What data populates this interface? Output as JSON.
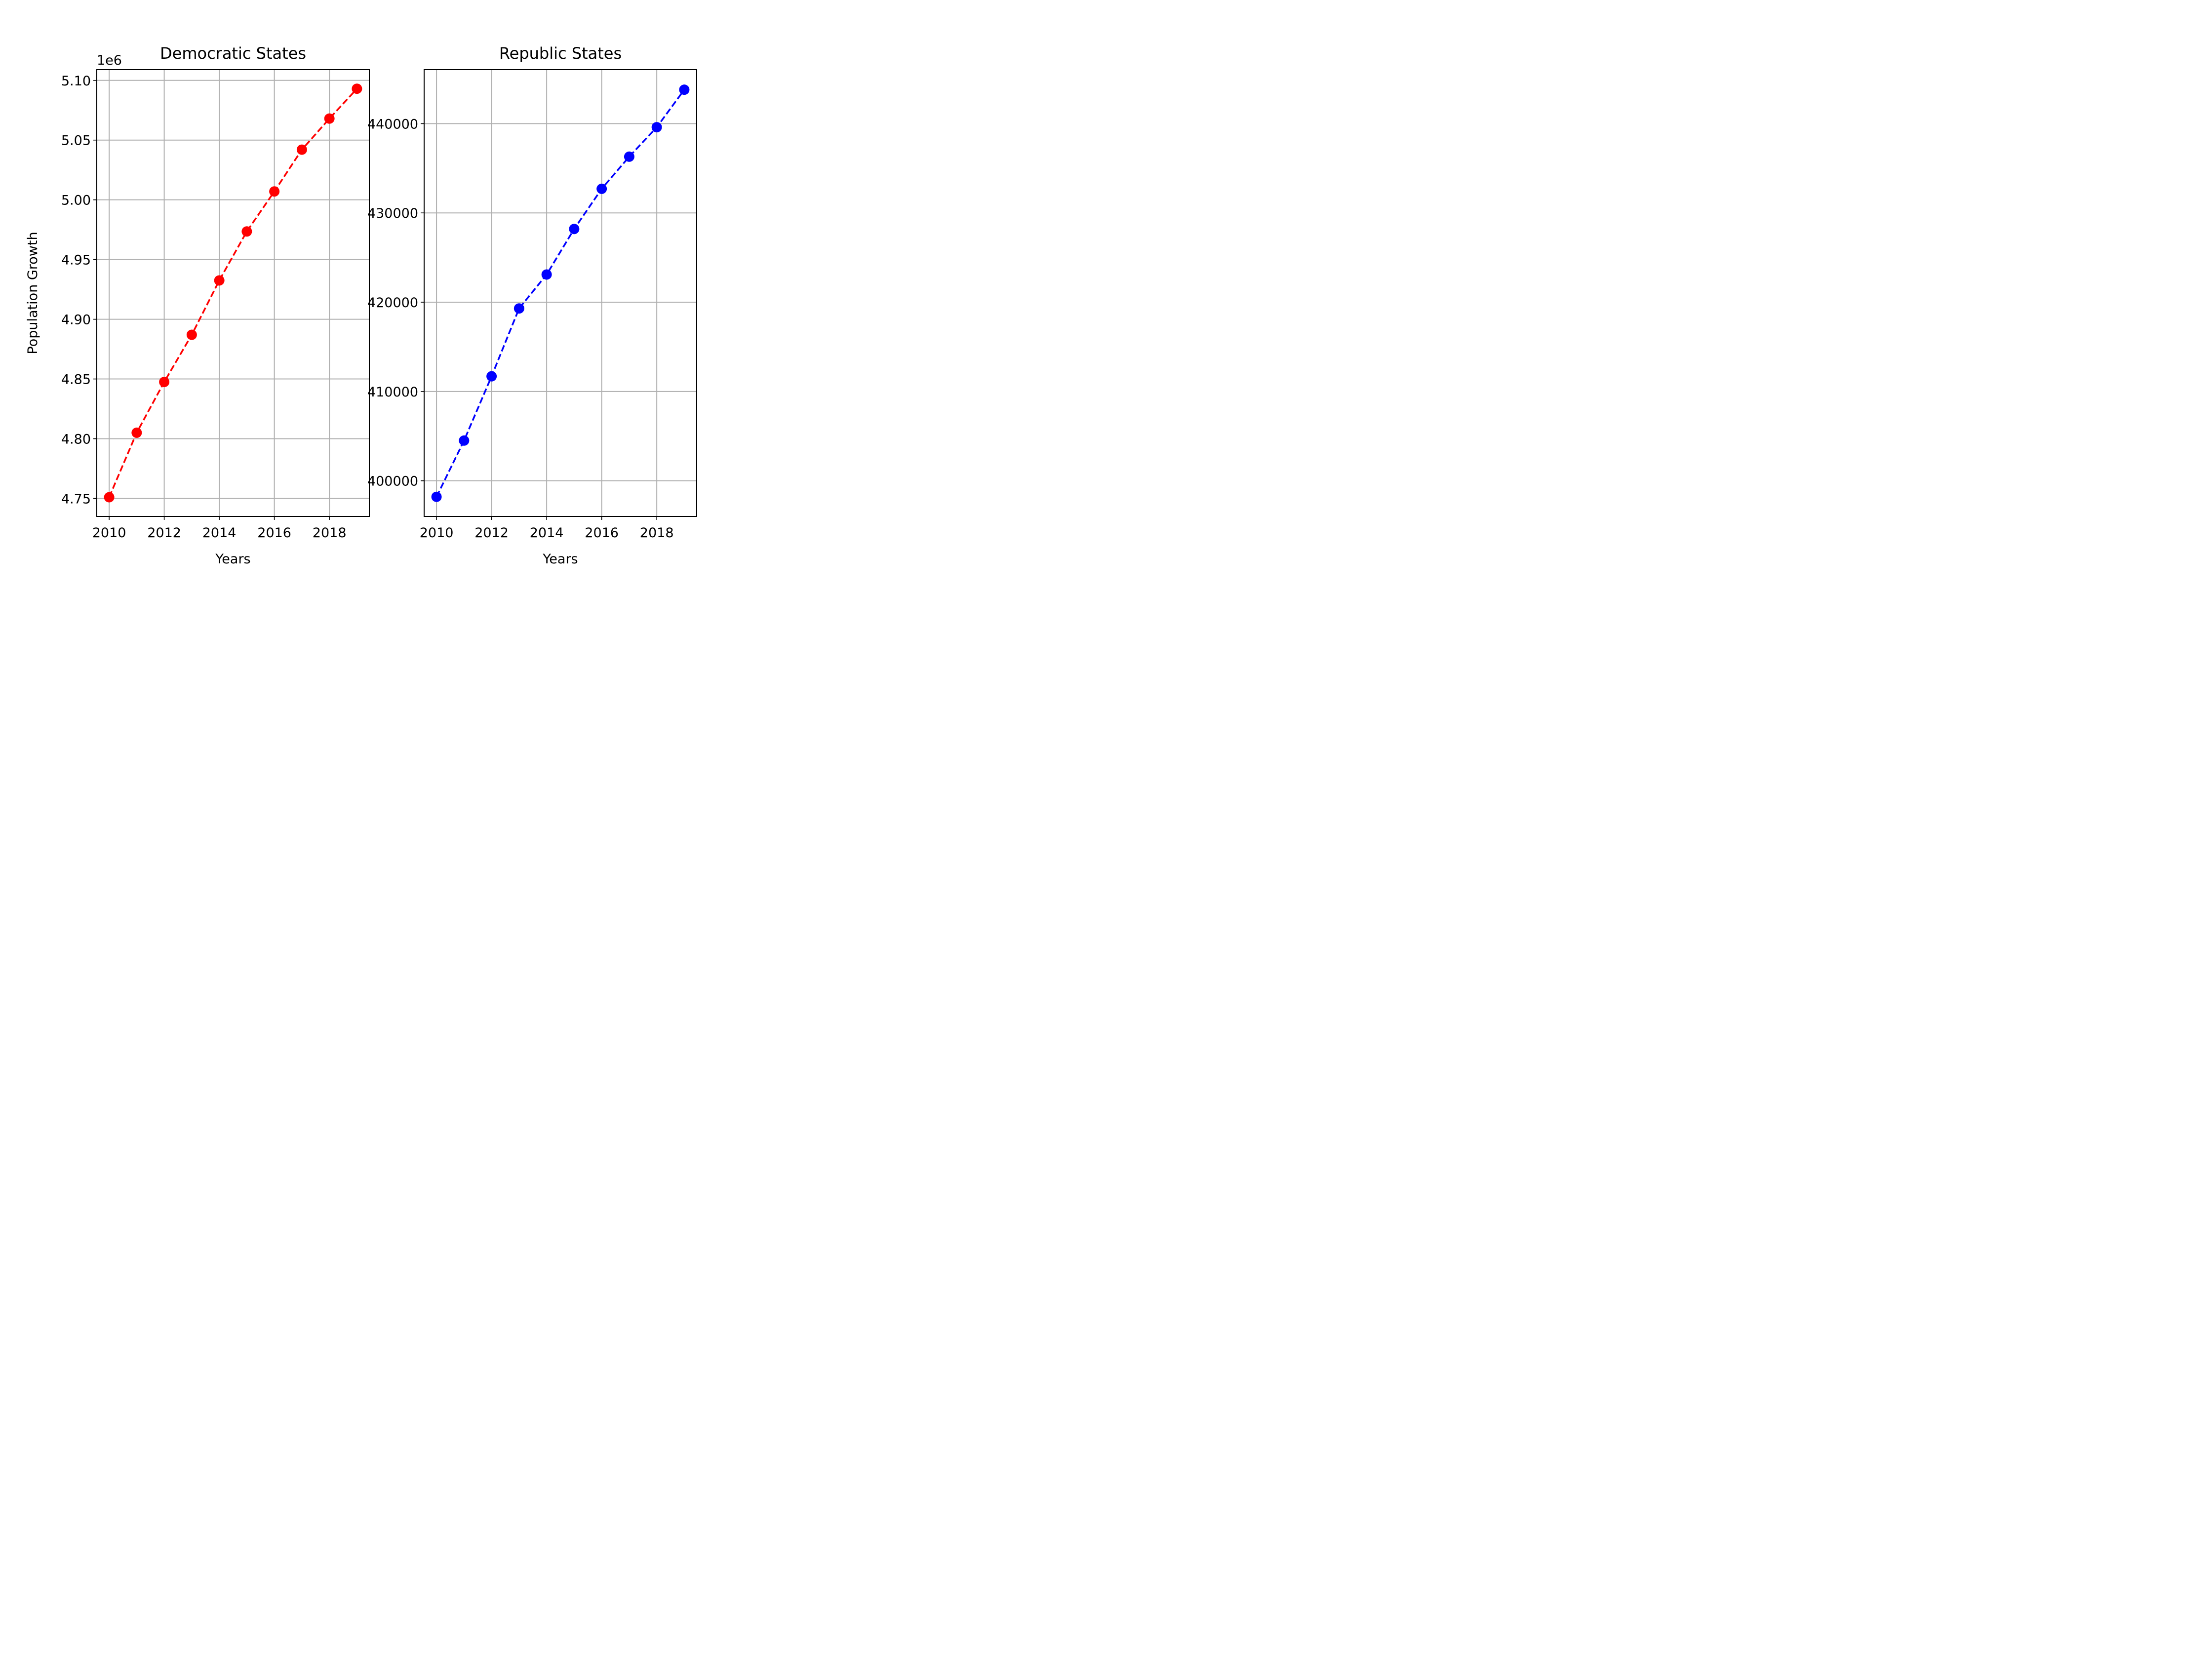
{
  "chart_data": [
    {
      "type": "line",
      "title": "Democratic States",
      "xlabel": "Years",
      "ylabel": "Population Growth",
      "y_offset_label": "1e6",
      "x": [
        2010,
        2011,
        2012,
        2013,
        2014,
        2015,
        2016,
        2017,
        2018,
        2019
      ],
      "series": [
        {
          "values": [
            4751000,
            4805000,
            4847500,
            4887000,
            4932500,
            4973500,
            5007000,
            5042000,
            5068000,
            5093000
          ],
          "color": "#ff0000",
          "line_style": "dashed",
          "marker": "circle"
        }
      ],
      "xlim": [
        2009.55,
        2019.45
      ],
      "ylim": [
        4734900,
        5109000
      ],
      "x_ticks": [
        2010,
        2012,
        2014,
        2016,
        2018
      ],
      "x_tick_labels": [
        "2010",
        "2012",
        "2014",
        "2016",
        "2018"
      ],
      "y_ticks": [
        4750000,
        4800000,
        4850000,
        4900000,
        4950000,
        5000000,
        5050000,
        5100000
      ],
      "y_tick_labels": [
        "4.75",
        "4.80",
        "4.85",
        "4.90",
        "4.95",
        "5.00",
        "5.05",
        "5.10"
      ],
      "grid": true,
      "legend": "none"
    },
    {
      "type": "line",
      "title": "Republic States",
      "xlabel": "Years",
      "ylabel": "",
      "x": [
        2010,
        2011,
        2012,
        2013,
        2014,
        2015,
        2016,
        2017,
        2018,
        2019
      ],
      "series": [
        {
          "values": [
            398200,
            404500,
            411700,
            419300,
            423100,
            428200,
            432700,
            436300,
            439600,
            443800
          ],
          "color": "#0000ff",
          "line_style": "dashed",
          "marker": "circle"
        }
      ],
      "xlim": [
        2009.55,
        2019.45
      ],
      "ylim": [
        396000,
        446050
      ],
      "x_ticks": [
        2010,
        2012,
        2014,
        2016,
        2018
      ],
      "x_tick_labels": [
        "2010",
        "2012",
        "2014",
        "2016",
        "2018"
      ],
      "y_ticks": [
        400000,
        410000,
        420000,
        430000,
        440000
      ],
      "y_tick_labels": [
        "400000",
        "410000",
        "420000",
        "430000",
        "440000"
      ],
      "grid": true,
      "legend": "none"
    }
  ]
}
